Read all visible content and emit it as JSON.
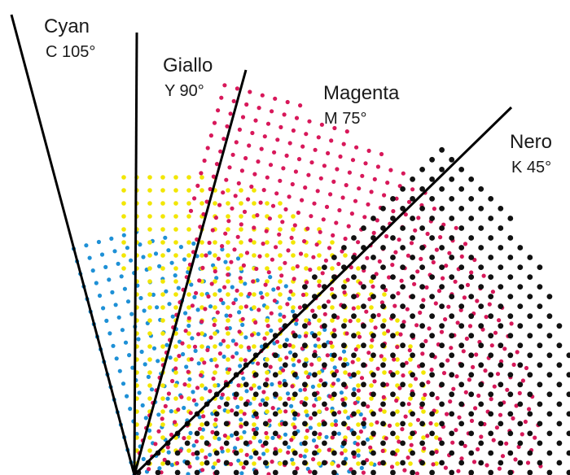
{
  "screens": [
    {
      "key": "cyan",
      "name": "Cyan",
      "code": "C 105°",
      "angle": 105,
      "color": "#1e90d6"
    },
    {
      "key": "giallo",
      "name": "Giallo",
      "code": "Y 90°",
      "angle": 90,
      "color": "#f2e600"
    },
    {
      "key": "magenta",
      "name": "Magenta",
      "code": "M 75°",
      "angle": 75,
      "color": "#d8185a"
    },
    {
      "key": "nero",
      "name": "Nero",
      "code": "K 45°",
      "angle": 45,
      "color": "#111111"
    }
  ]
}
